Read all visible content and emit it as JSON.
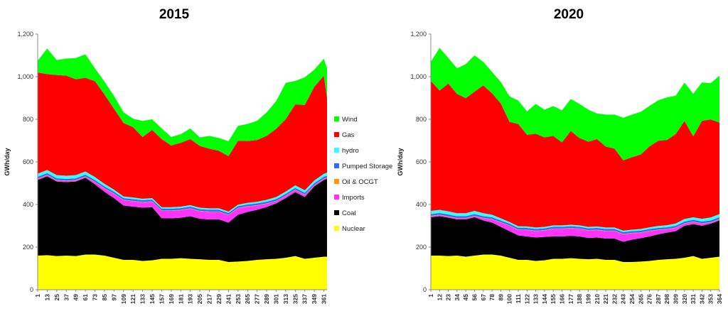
{
  "chart_data": [
    {
      "type": "area",
      "stacked": true,
      "title": "2015",
      "xlabel": "",
      "ylabel": "GWh/day",
      "ylim": [
        0,
        1200
      ],
      "yticks": [
        "0",
        "200",
        "400",
        "600",
        "800",
        "1,000",
        "1,200"
      ],
      "xticks": [
        "1",
        "13",
        "25",
        "37",
        "49",
        "61",
        "73",
        "85",
        "97",
        "109",
        "121",
        "133",
        "145",
        "157",
        "169",
        "181",
        "193",
        "205",
        "217",
        "229",
        "241",
        "253",
        "265",
        "277",
        "289",
        "301",
        "313",
        "325",
        "337",
        "349",
        "361"
      ],
      "legend": "right",
      "x": [
        1,
        13,
        25,
        37,
        49,
        61,
        73,
        85,
        97,
        109,
        121,
        133,
        145,
        157,
        169,
        181,
        193,
        205,
        217,
        229,
        241,
        253,
        265,
        277,
        289,
        301,
        313,
        325,
        337,
        349,
        361,
        365
      ],
      "series": [
        {
          "name": "Nuclear",
          "color": "#ffff00",
          "values": [
            160,
            162,
            158,
            160,
            158,
            165,
            165,
            160,
            150,
            140,
            140,
            135,
            138,
            145,
            145,
            148,
            145,
            143,
            140,
            140,
            130,
            132,
            135,
            140,
            143,
            145,
            150,
            158,
            145,
            150,
            155,
            155
          ]
        },
        {
          "name": "Coal",
          "color": "#000000",
          "values": [
            355,
            370,
            350,
            345,
            350,
            360,
            330,
            300,
            280,
            255,
            250,
            250,
            250,
            190,
            190,
            190,
            200,
            190,
            190,
            190,
            185,
            220,
            230,
            235,
            245,
            260,
            280,
            300,
            290,
            335,
            360,
            365
          ]
        },
        {
          "name": "Imports",
          "color": "#ff33ff",
          "values": [
            5,
            5,
            5,
            5,
            5,
            5,
            10,
            15,
            20,
            25,
            25,
            25,
            25,
            35,
            35,
            35,
            35,
            35,
            35,
            35,
            35,
            30,
            25,
            20,
            15,
            10,
            10,
            10,
            10,
            5,
            5,
            5
          ]
        },
        {
          "name": "Oil & OCGT",
          "color": "#ff9900",
          "values": [
            2,
            2,
            2,
            2,
            2,
            2,
            2,
            2,
            2,
            2,
            2,
            2,
            2,
            2,
            2,
            2,
            2,
            2,
            2,
            2,
            2,
            2,
            2,
            2,
            2,
            2,
            2,
            2,
            2,
            2,
            2,
            2
          ]
        },
        {
          "name": "Pumped Storage",
          "color": "#3366ff",
          "values": [
            8,
            8,
            8,
            8,
            8,
            8,
            8,
            8,
            8,
            8,
            8,
            8,
            8,
            8,
            8,
            8,
            8,
            8,
            8,
            8,
            8,
            8,
            8,
            8,
            8,
            8,
            8,
            8,
            8,
            8,
            8,
            8
          ]
        },
        {
          "name": "hydro",
          "color": "#33ffff",
          "values": [
            15,
            15,
            15,
            15,
            15,
            15,
            14,
            12,
            10,
            8,
            8,
            7,
            7,
            7,
            7,
            7,
            7,
            7,
            7,
            7,
            7,
            7,
            8,
            8,
            9,
            10,
            11,
            12,
            12,
            13,
            14,
            15
          ]
        },
        {
          "name": "Gas",
          "color": "#ff0000",
          "values": [
            475,
            450,
            470,
            470,
            450,
            440,
            450,
            420,
            380,
            345,
            330,
            290,
            320,
            320,
            290,
            300,
            310,
            290,
            280,
            270,
            260,
            300,
            290,
            290,
            300,
            320,
            340,
            380,
            400,
            440,
            460,
            350
          ]
        },
        {
          "name": "Wind",
          "color": "#00ff00",
          "values": [
            55,
            120,
            70,
            80,
            100,
            110,
            60,
            60,
            60,
            50,
            40,
            75,
            50,
            50,
            40,
            40,
            50,
            40,
            60,
            60,
            70,
            70,
            80,
            90,
            110,
            130,
            170,
            110,
            130,
            80,
            80,
            140
          ]
        }
      ]
    },
    {
      "type": "area",
      "stacked": true,
      "title": "2020",
      "xlabel": "",
      "ylabel": "GWh/day",
      "ylim": [
        0,
        1200
      ],
      "yticks": [
        "0",
        "200",
        "400",
        "600",
        "800",
        "1,000",
        "1,200"
      ],
      "xticks": [
        "1",
        "12",
        "23",
        "34",
        "45",
        "56",
        "67",
        "78",
        "89",
        "100",
        "111",
        "122",
        "133",
        "144",
        "155",
        "166",
        "177",
        "188",
        "199",
        "210",
        "221",
        "232",
        "243",
        "254",
        "265",
        "276",
        "287",
        "298",
        "309",
        "320",
        "331",
        "342",
        "353",
        "364"
      ],
      "legend": "none",
      "x": [
        1,
        12,
        23,
        34,
        45,
        56,
        67,
        78,
        89,
        100,
        111,
        122,
        133,
        144,
        155,
        166,
        177,
        188,
        199,
        210,
        221,
        232,
        243,
        254,
        265,
        276,
        287,
        298,
        309,
        320,
        331,
        342,
        353,
        364
      ],
      "series": [
        {
          "name": "Nuclear",
          "color": "#ffff00",
          "values": [
            160,
            160,
            158,
            160,
            155,
            160,
            165,
            165,
            160,
            150,
            140,
            140,
            135,
            138,
            145,
            145,
            148,
            145,
            143,
            145,
            140,
            140,
            130,
            130,
            132,
            135,
            140,
            143,
            145,
            150,
            158,
            145,
            150,
            155
          ]
        },
        {
          "name": "Coal",
          "color": "#000000",
          "values": [
            180,
            185,
            180,
            170,
            175,
            180,
            160,
            150,
            135,
            125,
            115,
            110,
            110,
            110,
            105,
            105,
            105,
            105,
            100,
            100,
            100,
            100,
            95,
            105,
            110,
            115,
            120,
            125,
            130,
            150,
            150,
            155,
            160,
            170
          ]
        },
        {
          "name": "Imports",
          "color": "#ff33ff",
          "values": [
            5,
            5,
            5,
            5,
            5,
            5,
            10,
            15,
            20,
            25,
            25,
            30,
            30,
            30,
            35,
            35,
            35,
            35,
            35,
            35,
            35,
            35,
            35,
            30,
            25,
            25,
            20,
            15,
            15,
            10,
            10,
            10,
            5,
            5
          ]
        },
        {
          "name": "Oil & OCGT",
          "color": "#ff9900",
          "values": [
            2,
            2,
            2,
            2,
            2,
            2,
            2,
            2,
            2,
            2,
            2,
            2,
            2,
            2,
            2,
            2,
            2,
            2,
            2,
            2,
            2,
            2,
            2,
            2,
            2,
            2,
            2,
            2,
            2,
            2,
            2,
            2,
            2,
            2
          ]
        },
        {
          "name": "Pumped Storage",
          "color": "#3366ff",
          "values": [
            8,
            8,
            8,
            8,
            8,
            8,
            8,
            8,
            8,
            8,
            8,
            8,
            8,
            8,
            8,
            8,
            8,
            8,
            8,
            8,
            8,
            8,
            8,
            8,
            8,
            8,
            8,
            8,
            8,
            8,
            8,
            8,
            8,
            8
          ]
        },
        {
          "name": "hydro",
          "color": "#33ffff",
          "values": [
            15,
            15,
            15,
            14,
            14,
            15,
            14,
            12,
            10,
            8,
            8,
            7,
            7,
            7,
            7,
            7,
            7,
            7,
            7,
            7,
            7,
            7,
            7,
            7,
            8,
            8,
            9,
            10,
            11,
            12,
            12,
            13,
            14,
            15
          ]
        },
        {
          "name": "Gas",
          "color": "#ff0000",
          "values": [
            610,
            560,
            600,
            560,
            540,
            560,
            600,
            570,
            540,
            470,
            480,
            430,
            440,
            420,
            420,
            390,
            440,
            410,
            400,
            410,
            380,
            370,
            330,
            340,
            350,
            380,
            400,
            400,
            420,
            460,
            380,
            460,
            460,
            430
          ]
        },
        {
          "name": "Wind",
          "color": "#00ff00",
          "values": [
            90,
            200,
            120,
            120,
            160,
            170,
            110,
            100,
            100,
            120,
            110,
            110,
            140,
            130,
            140,
            150,
            150,
            160,
            150,
            120,
            150,
            160,
            200,
            200,
            200,
            190,
            190,
            200,
            180,
            180,
            200,
            180,
            170,
            220
          ]
        }
      ]
    }
  ]
}
